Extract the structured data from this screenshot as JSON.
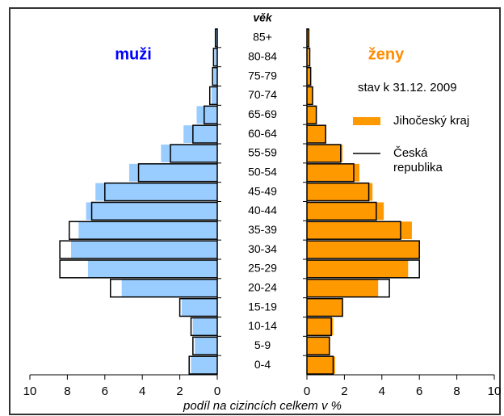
{
  "chart_data": {
    "type": "pyramid",
    "category_title": "věk",
    "categories": [
      "85+",
      "80-84",
      "75-79",
      "70-74",
      "65-69",
      "60-64",
      "55-59",
      "50-54",
      "45-49",
      "40-44",
      "35-39",
      "30-34",
      "25-29",
      "20-24",
      "15-19",
      "10-14",
      "5-9",
      "0-4"
    ],
    "groups": [
      "muži",
      "ženy"
    ],
    "group_colors": [
      "#0000ff",
      "#ff8c00"
    ],
    "series": [
      {
        "name": "Jihočeský kraj",
        "style": "fill",
        "colors": [
          "#99ccff",
          "#ff9900"
        ],
        "values": [
          [
            0.1,
            0.15,
            0.2,
            0.3,
            1.1,
            1.8,
            3.0,
            4.7,
            6.5,
            7.0,
            7.4,
            7.8,
            6.9,
            5.1,
            1.9,
            1.3,
            1.2,
            1.4
          ],
          [
            0.1,
            0.1,
            0.2,
            0.3,
            0.5,
            1.0,
            1.9,
            2.8,
            3.5,
            4.1,
            5.6,
            6.0,
            5.4,
            3.8,
            1.9,
            1.4,
            1.2,
            1.5
          ]
        ]
      },
      {
        "name": "Česká republika",
        "style": "outline",
        "colors": [
          "#000000",
          "#000000"
        ],
        "values": [
          [
            0.1,
            0.2,
            0.25,
            0.4,
            0.7,
            1.3,
            2.5,
            4.2,
            6.0,
            6.7,
            7.9,
            8.4,
            8.4,
            5.7,
            2.0,
            1.4,
            1.3,
            1.5
          ],
          [
            0.1,
            0.15,
            0.2,
            0.3,
            0.5,
            1.0,
            1.8,
            2.5,
            3.3,
            3.7,
            5.0,
            6.0,
            6.0,
            4.4,
            1.9,
            1.3,
            1.2,
            1.4
          ]
        ]
      }
    ],
    "note": "stav k 31.12. 2009",
    "xlabel": "podíl na cizincích celkem v %",
    "xlim": [
      0,
      10
    ],
    "xticks": [
      0,
      2,
      4,
      6,
      8,
      10
    ]
  }
}
